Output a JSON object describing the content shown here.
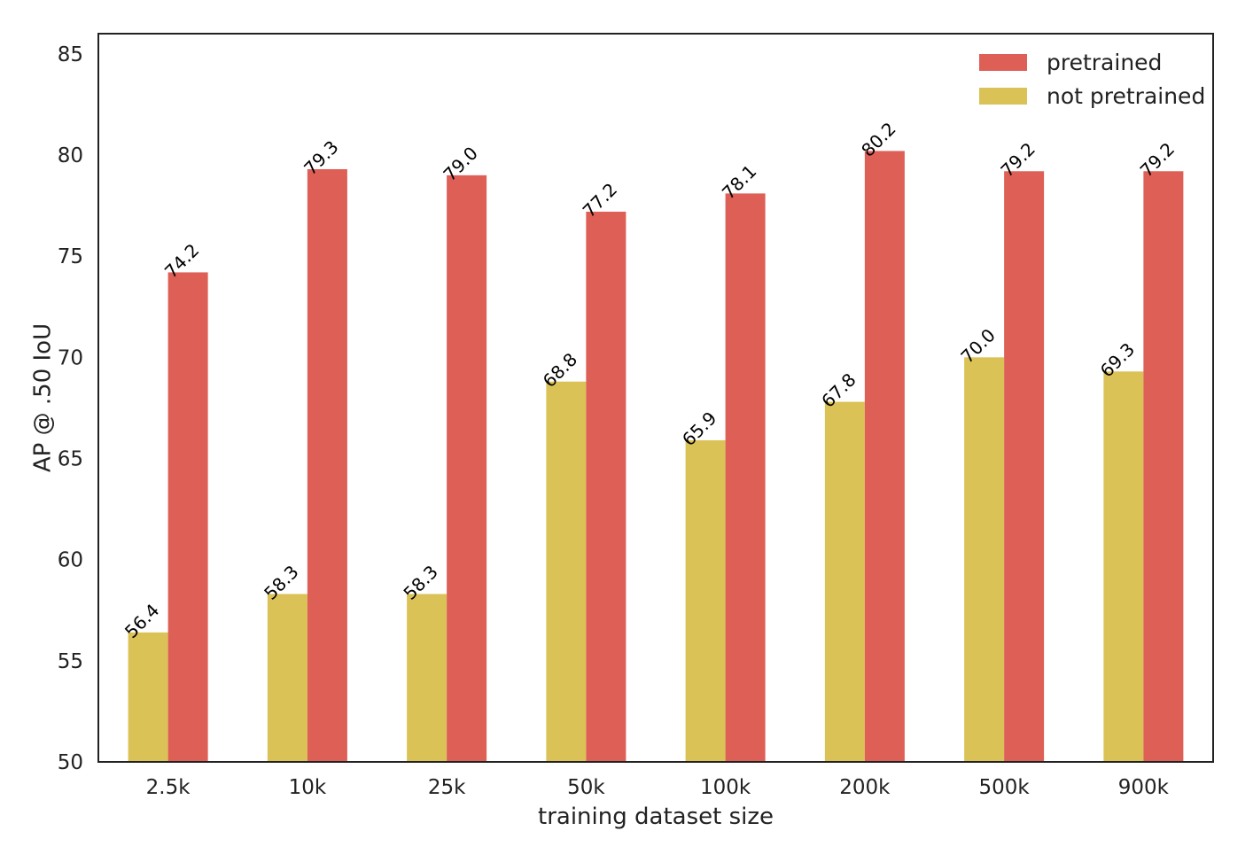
{
  "chart_data": {
    "type": "bar",
    "xlabel": "training dataset size",
    "ylabel": "AP @ .50 IoU",
    "categories": [
      "2.5k",
      "10k",
      "25k",
      "50k",
      "100k",
      "200k",
      "500k",
      "900k"
    ],
    "ylim": [
      50,
      86
    ],
    "yticks": [
      50,
      55,
      60,
      65,
      70,
      75,
      80,
      85
    ],
    "grid": false,
    "legend_position": "top-right",
    "series": [
      {
        "name": "not pretrained",
        "color": "#dbc256",
        "values": [
          56.4,
          58.3,
          58.3,
          68.8,
          65.9,
          67.8,
          70.0,
          69.3
        ],
        "labels": [
          "56.4",
          "58.3",
          "58.3",
          "68.8",
          "65.9",
          "67.8",
          "70.0",
          "69.3"
        ]
      },
      {
        "name": "pretrained",
        "color": "#dd5f56",
        "values": [
          74.2,
          79.3,
          79.0,
          77.2,
          78.1,
          80.2,
          79.2,
          79.2
        ],
        "labels": [
          "74.2",
          "79.3",
          "79.0",
          "77.2",
          "78.1",
          "80.2",
          "79.2",
          "79.2"
        ]
      }
    ],
    "legend_order": [
      "pretrained",
      "not pretrained"
    ]
  }
}
